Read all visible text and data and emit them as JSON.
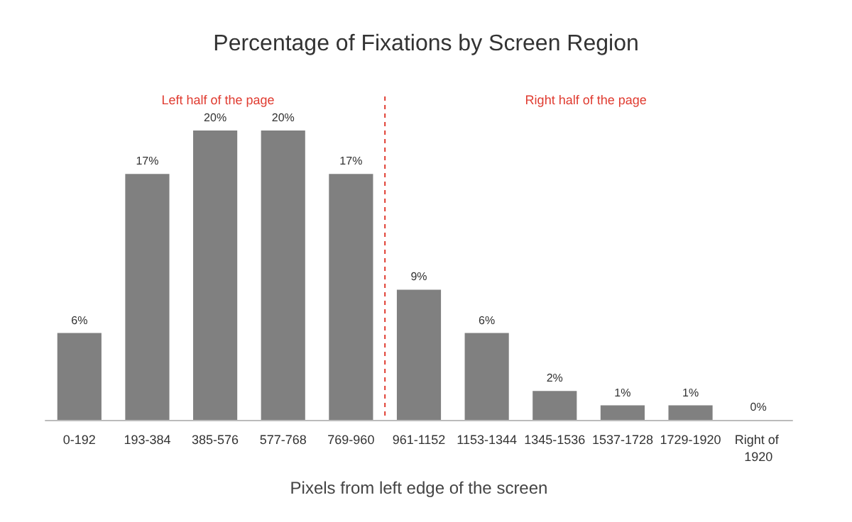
{
  "chart_data": {
    "type": "bar",
    "title": "Percentage of Fixations by Screen Region",
    "xlabel": "Pixels from left edge of the screen",
    "categories": [
      "0-192",
      "193-384",
      "385-576",
      "577-768",
      "769-960",
      "961-1152",
      "1153-1344",
      "1345-1536",
      "1537-1728",
      "1729-1920",
      "Right of 1920"
    ],
    "values": [
      6,
      17,
      20,
      20,
      17,
      9,
      6,
      2,
      1,
      1,
      0
    ],
    "value_labels": [
      "6%",
      "17%",
      "20%",
      "20%",
      "17%",
      "9%",
      "6%",
      "2%",
      "1%",
      "1%",
      "0%"
    ],
    "color": "#808080",
    "ref_lines": [
      {
        "axis": "x",
        "value": "961-1152",
        "color": "#e03c31",
        "line_style": "dashed"
      }
    ],
    "annotations": [
      "Left half of the page",
      "Right half of the page"
    ]
  }
}
